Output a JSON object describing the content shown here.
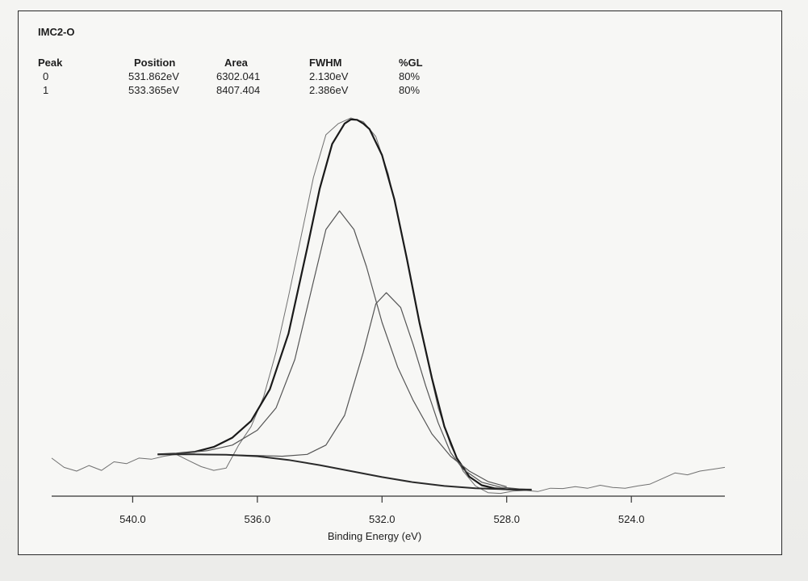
{
  "chart_data": {
    "type": "line",
    "title": "IMC2-O",
    "xlabel": "Binding Energy (eV)",
    "ylabel": "",
    "x_reversed": true,
    "xlim": [
      542.6,
      521.0
    ],
    "ylim": [
      0,
      1
    ],
    "x_ticks": [
      "540.0",
      "536.0",
      "532.0",
      "528.0",
      "524.0"
    ],
    "grid": false,
    "peak_table": {
      "headers": [
        "Peak",
        "Position",
        "Area",
        "FWHM",
        "%GL"
      ],
      "rows": [
        [
          "0",
          "531.862eV",
          "6302.041",
          "2.130eV",
          "80%"
        ],
        [
          "1",
          "533.365eV",
          "8407.404",
          "2.386eV",
          "80%"
        ]
      ]
    },
    "series": [
      {
        "role": "raw",
        "x": [
          542.6,
          542.2,
          541.8,
          541.4,
          541.0,
          540.6,
          540.2,
          539.8,
          539.4,
          539.0,
          538.6,
          538.2,
          537.8,
          537.4,
          537.0,
          536.6,
          536.2,
          535.8,
          535.4,
          535.0,
          534.6,
          534.2,
          533.8,
          533.4,
          533.0,
          532.6,
          532.2,
          531.8,
          531.4,
          531.0,
          530.6,
          530.2,
          529.8,
          529.4,
          529.0,
          528.6,
          528.2,
          527.8,
          527.4,
          527.0,
          526.6,
          526.2,
          525.8,
          525.4,
          525.0,
          524.6,
          524.2,
          523.8,
          523.4,
          523.0,
          522.6,
          522.2,
          521.8,
          521.4,
          521.0
        ],
        "y": [
          0.085,
          0.06,
          0.05,
          0.065,
          0.052,
          0.075,
          0.07,
          0.085,
          0.082,
          0.09,
          0.095,
          0.078,
          0.062,
          0.052,
          0.058,
          0.12,
          0.17,
          0.25,
          0.37,
          0.52,
          0.68,
          0.84,
          0.955,
          0.985,
          1.0,
          0.99,
          0.95,
          0.85,
          0.7,
          0.53,
          0.37,
          0.22,
          0.12,
          0.05,
          0.01,
          -0.008,
          -0.01,
          -0.004,
          -0.002,
          -0.005,
          0.004,
          0.003,
          0.008,
          0.004,
          0.012,
          0.006,
          0.004,
          0.01,
          0.015,
          0.03,
          0.045,
          0.04,
          0.05,
          0.055,
          0.06
        ]
      },
      {
        "role": "envelope",
        "x": [
          539.2,
          538.6,
          538.0,
          537.4,
          536.8,
          536.2,
          535.6,
          535.0,
          534.4,
          534.0,
          533.6,
          533.2,
          533.0,
          532.8,
          532.6,
          532.4,
          532.0,
          531.6,
          531.2,
          530.8,
          530.4,
          530.0,
          529.6,
          529.2,
          528.8,
          528.4,
          528.0,
          527.6,
          527.2
        ],
        "y": [
          0.095,
          0.097,
          0.102,
          0.115,
          0.14,
          0.185,
          0.27,
          0.42,
          0.65,
          0.81,
          0.93,
          0.985,
          0.996,
          0.995,
          0.985,
          0.97,
          0.9,
          0.78,
          0.62,
          0.45,
          0.3,
          0.17,
          0.085,
          0.035,
          0.012,
          0.004,
          0.001,
          0.0,
          0.0
        ]
      },
      {
        "role": "component",
        "label": "1",
        "x": [
          539.2,
          538.4,
          537.6,
          536.8,
          536.0,
          535.4,
          534.8,
          534.2,
          533.8,
          533.365,
          532.9,
          532.5,
          532.0,
          531.5,
          531.0,
          530.4,
          529.8,
          529.2,
          528.6,
          528.0
        ],
        "y": [
          0.095,
          0.098,
          0.105,
          0.12,
          0.16,
          0.22,
          0.35,
          0.56,
          0.7,
          0.75,
          0.7,
          0.6,
          0.45,
          0.33,
          0.24,
          0.15,
          0.09,
          0.05,
          0.022,
          0.008
        ]
      },
      {
        "role": "component",
        "label": "0",
        "x": [
          539.2,
          538.0,
          537.0,
          536.0,
          535.2,
          534.4,
          533.8,
          533.2,
          532.6,
          532.2,
          531.862,
          531.4,
          531.0,
          530.6,
          530.2,
          529.8,
          529.4,
          528.8,
          528.2,
          527.6,
          527.2
        ],
        "y": [
          0.095,
          0.095,
          0.094,
          0.092,
          0.09,
          0.095,
          0.12,
          0.2,
          0.37,
          0.5,
          0.53,
          0.49,
          0.39,
          0.28,
          0.18,
          0.1,
          0.055,
          0.02,
          0.007,
          0.002,
          0.0
        ]
      },
      {
        "role": "background",
        "x": [
          539.2,
          538.0,
          537.0,
          536.0,
          535.0,
          534.0,
          533.0,
          532.0,
          531.0,
          530.0,
          529.0,
          528.0,
          527.2
        ],
        "y": [
          0.095,
          0.095,
          0.094,
          0.09,
          0.08,
          0.066,
          0.05,
          0.034,
          0.02,
          0.01,
          0.004,
          0.001,
          0.0
        ]
      }
    ]
  },
  "colors": {
    "raw": "#707070",
    "envelope": "#1a1a1a",
    "component": "#555555",
    "background": "#2a2a2a",
    "axis": "#333333"
  }
}
